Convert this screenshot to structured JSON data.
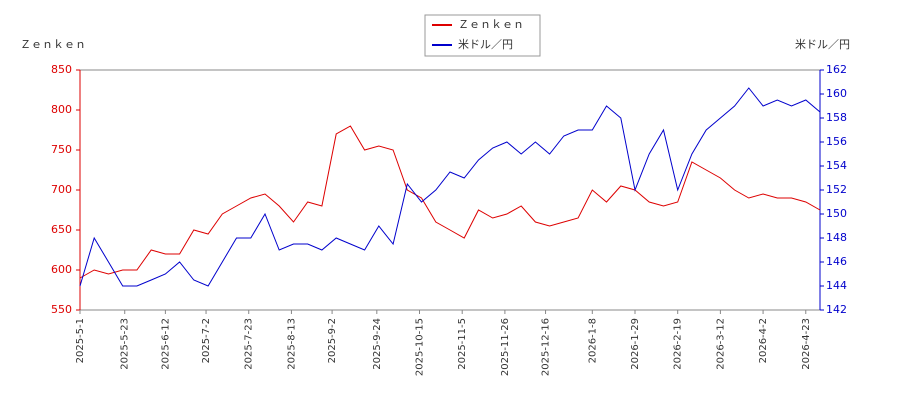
{
  "chart_data": {
    "type": "line",
    "y_label": "Ｚｅｎｋｅｎ",
    "y2_label": "米ドル／円",
    "x": [
      "2025-5-1",
      "2025-5-8",
      "2025-5-15",
      "2025-5-22",
      "2025-5-29",
      "2025-6-5",
      "2025-6-12",
      "2025-6-19",
      "2025-6-26",
      "2025-7-3",
      "2025-7-10",
      "2025-7-17",
      "2025-7-24",
      "2025-7-31",
      "2025-8-7",
      "2025-8-14",
      "2025-8-21",
      "2025-8-28",
      "2025-9-4",
      "2025-9-11",
      "2025-9-18",
      "2025-9-25",
      "2025-10-2",
      "2025-10-9",
      "2025-10-16",
      "2025-10-23",
      "2025-10-30",
      "2025-11-6",
      "2025-11-13",
      "2025-11-20",
      "2025-11-27",
      "2025-12-4",
      "2025-12-11",
      "2025-12-18",
      "2025-12-25",
      "2026-1-1",
      "2026-1-8",
      "2026-1-15",
      "2026-1-22",
      "2026-1-29",
      "2026-2-5",
      "2026-2-12",
      "2026-2-19",
      "2026-2-26",
      "2026-3-5",
      "2026-3-12",
      "2026-3-19",
      "2026-3-26",
      "2026-4-2",
      "2026-4-9",
      "2026-4-16",
      "2026-4-23",
      "2026-4-30"
    ],
    "series": [
      {
        "name": "Ｚｅｎｋｅｎ",
        "color": "#dd0000",
        "values": [
          590,
          600,
          595,
          600,
          600,
          625,
          620,
          620,
          650,
          645,
          670,
          680,
          690,
          695,
          680,
          660,
          685,
          680,
          770,
          780,
          750,
          755,
          750,
          700,
          690,
          660,
          650,
          640,
          675,
          665,
          670,
          680,
          660,
          655,
          660,
          665,
          700,
          685,
          705,
          700,
          685,
          680,
          685,
          735,
          725,
          715,
          700,
          690,
          695,
          690,
          690,
          685,
          675
        ]
      },
      {
        "name": "米ドル／円",
        "color": "#0000cc",
        "axis": "y2",
        "values": [
          144,
          148,
          146,
          144,
          144,
          144.5,
          145,
          146,
          144.5,
          144,
          146,
          148,
          148,
          150,
          147,
          147.5,
          147.5,
          147,
          148,
          147.5,
          147,
          149,
          147.5,
          152.5,
          151,
          152,
          153.5,
          153,
          154.5,
          155.5,
          156,
          155,
          156,
          155,
          156.5,
          157,
          157,
          159,
          158,
          152,
          155,
          157,
          152,
          155,
          157,
          158,
          159,
          160.5,
          159,
          159.5,
          159,
          159.5,
          158.5
        ]
      }
    ],
    "xlim": [
      "2025-5-1",
      "2026-4-30"
    ],
    "xticks": [
      "2025-5-1",
      "2025-5-23",
      "2025-6-12",
      "2025-7-2",
      "2025-7-23",
      "2025-8-13",
      "2025-9-2",
      "2025-9-24",
      "2025-10-15",
      "2025-11-5",
      "2025-11-26",
      "2025-12-16",
      "2026-1-8",
      "2026-1-29",
      "2026-2-19",
      "2026-3-12",
      "2026-4-2",
      "2026-4-23"
    ],
    "ylim": [
      550,
      850
    ],
    "yticks": [
      550,
      600,
      650,
      700,
      750,
      800,
      850
    ],
    "y2lim": [
      142,
      162
    ],
    "y2ticks": [
      142,
      144,
      146,
      148,
      150,
      152,
      154,
      156,
      158,
      160,
      162
    ],
    "left_axis_color": "#dd0000",
    "right_axis_color": "#0000cc"
  }
}
